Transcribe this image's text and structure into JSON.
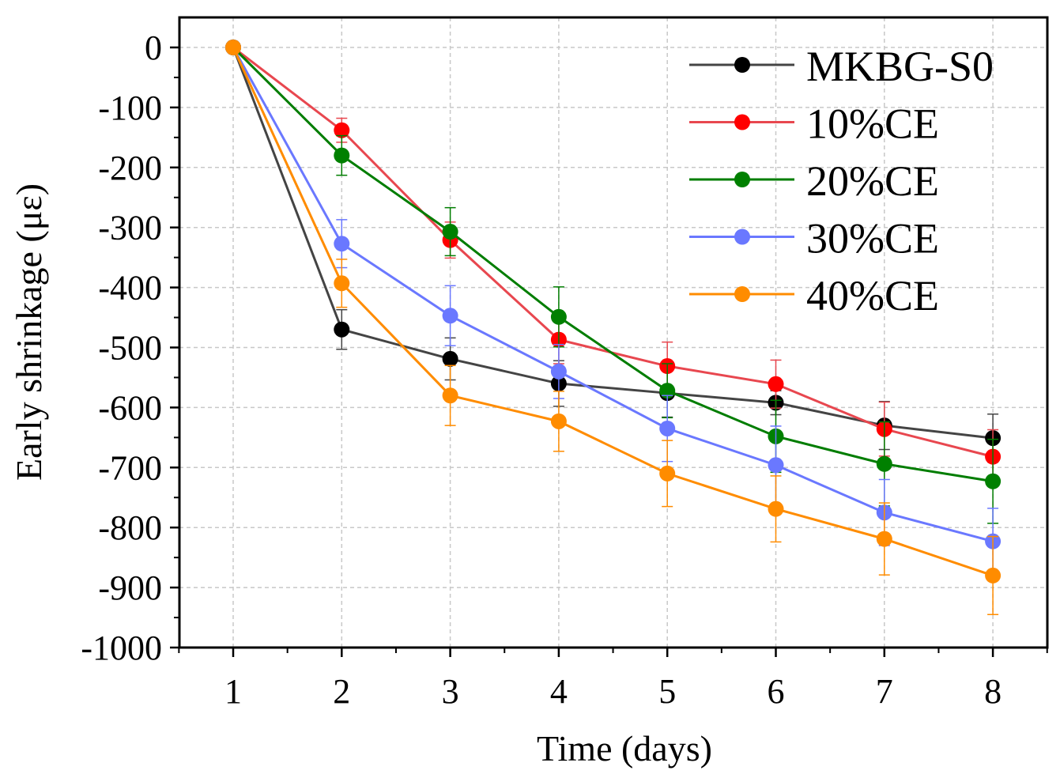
{
  "chart_data": {
    "type": "line",
    "title": "",
    "xlabel": "Time (days)",
    "ylabel": "Early shrinkage (με)",
    "xlim": [
      0.52,
      8.5
    ],
    "ylim": [
      -1000,
      50
    ],
    "x": [
      1,
      2,
      3,
      4,
      5,
      6,
      7,
      8
    ],
    "xticks": [
      "1",
      "2",
      "3",
      "4",
      "5",
      "6",
      "7",
      "8"
    ],
    "yticks": [
      0,
      -100,
      -200,
      -300,
      -400,
      -500,
      -600,
      -700,
      -800,
      -900,
      -1000
    ],
    "ytick_labels": [
      "0",
      "-100",
      "-200",
      "-300",
      "-400",
      "-500",
      "-600",
      "-700",
      "-800",
      "-900",
      "-1000"
    ],
    "grid": true,
    "legend_position": "top-right",
    "series": [
      {
        "name": "MKBG-S0",
        "line_color": "#444444",
        "marker_color": "#000000",
        "values": [
          0,
          -470,
          -519,
          -560,
          -576,
          -592,
          -630,
          -651
        ],
        "errors": [
          0,
          33,
          35,
          38,
          40,
          20,
          40,
          40
        ]
      },
      {
        "name": "10%CE",
        "line_color": "#e8474f",
        "marker_color": "#ff0000",
        "values": [
          0,
          -138,
          -321,
          -487,
          -531,
          -561,
          -636,
          -682
        ],
        "errors": [
          0,
          20,
          30,
          40,
          40,
          40,
          45,
          45
        ]
      },
      {
        "name": "20%CE",
        "line_color": "#007d00",
        "marker_color": "#008000",
        "values": [
          0,
          -180,
          -307,
          -449,
          -572,
          -648,
          -694,
          -723
        ],
        "errors": [
          0,
          33,
          40,
          50,
          45,
          60,
          70,
          70
        ]
      },
      {
        "name": "30%CE",
        "line_color": "#6a78ff",
        "marker_color": "#6a78ff",
        "values": [
          0,
          -327,
          -447,
          -540,
          -635,
          -696,
          -775,
          -823
        ],
        "errors": [
          0,
          40,
          50,
          45,
          55,
          65,
          55,
          55
        ]
      },
      {
        "name": "40%CE",
        "line_color": "#ff8c00",
        "marker_color": "#ff8c00",
        "values": [
          0,
          -393,
          -580,
          -623,
          -710,
          -769,
          -819,
          -880
        ],
        "errors": [
          0,
          40,
          50,
          50,
          55,
          55,
          60,
          65
        ]
      }
    ]
  }
}
